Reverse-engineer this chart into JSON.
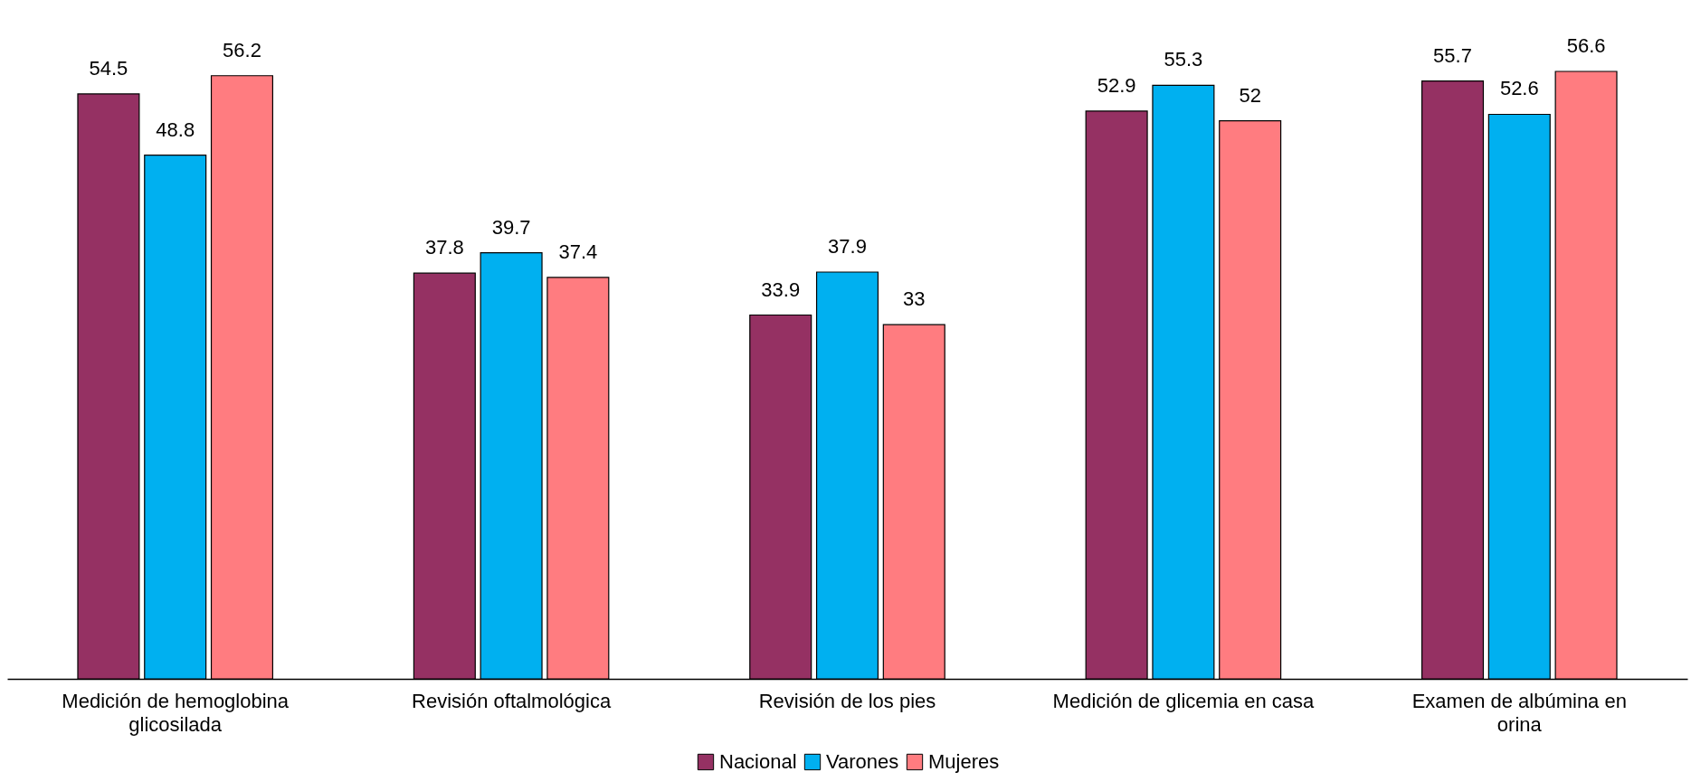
{
  "chart_data": {
    "type": "bar",
    "categories": [
      "Medición de hemoglobina\nglicosilada",
      "Revisión oftalmológica",
      "Revisión de los pies",
      "Medición de glicemia en casa",
      "Examen de albúmina en\norina"
    ],
    "series": [
      {
        "name": "Nacional",
        "color": "#953163",
        "values": [
          54.5,
          37.8,
          33.9,
          52.9,
          55.7
        ]
      },
      {
        "name": "Varones",
        "color": "#00b0f0",
        "values": [
          48.8,
          39.7,
          37.9,
          55.3,
          52.6
        ]
      },
      {
        "name": "Mujeres",
        "color": "#ff7c80",
        "values": [
          56.2,
          37.4,
          33,
          52,
          56.6
        ]
      }
    ],
    "tick_labels": "x",
    "data_labels": true,
    "legend": "bottom"
  }
}
